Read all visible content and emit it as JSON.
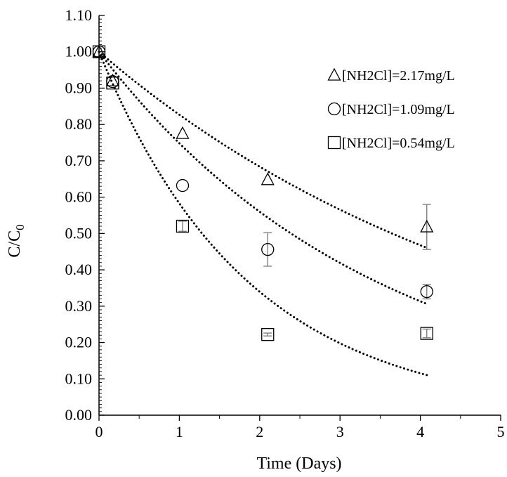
{
  "chart_data": {
    "type": "scatter",
    "xlabel": "Time (Days)",
    "ylabel_main": "C/C",
    "ylabel_sub": "0",
    "xlim": [
      0,
      5
    ],
    "ylim": [
      0,
      1.1
    ],
    "xticks": [
      "0",
      "1",
      "2",
      "3",
      "4",
      "5"
    ],
    "yticks": [
      "0.00",
      "0.10",
      "0.20",
      "0.30",
      "0.40",
      "0.50",
      "0.60",
      "0.70",
      "0.80",
      "0.90",
      "1.00",
      "1.10"
    ],
    "grid": false,
    "legend_position": "top-right",
    "series": [
      {
        "name": "[NH2Cl]=2.17mg/L",
        "marker": "triangle",
        "x": [
          0,
          0.17,
          1.04,
          2.1,
          4.08
        ],
        "y": [
          1.0,
          0.92,
          0.775,
          0.648,
          0.518
        ],
        "err": [
          0,
          0,
          0,
          0,
          0.062
        ],
        "fit_k": 0.19
      },
      {
        "name": "[NH2Cl]=1.09mg/L",
        "marker": "circle",
        "x": [
          0,
          0.17,
          1.04,
          2.1,
          4.08
        ],
        "y": [
          1.0,
          0.918,
          0.632,
          0.456,
          0.34
        ],
        "err": [
          0,
          0,
          0,
          0.046,
          0.02
        ],
        "fit_k": 0.29
      },
      {
        "name": "[NH2Cl]=0.54mg/L",
        "marker": "square",
        "x": [
          0,
          0.17,
          1.04,
          2.1,
          4.08
        ],
        "y": [
          1.0,
          0.914,
          0.52,
          0.222,
          0.225
        ],
        "err": [
          0,
          0,
          0.014,
          0.004,
          0.012
        ],
        "fit_k": 0.54
      }
    ]
  }
}
